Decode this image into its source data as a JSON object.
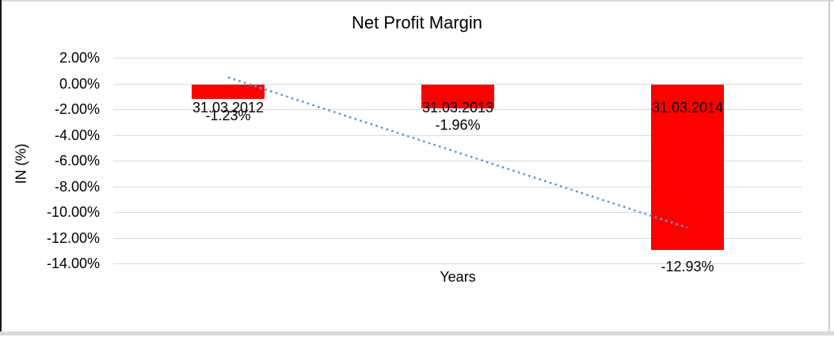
{
  "window": {
    "background": "#ffffff",
    "edge_left_color": "#161616",
    "edge_top_color": "#d8d8d8",
    "edge_right_color": "#cccccc",
    "edge_bottom_color": "#d9d9d9"
  },
  "chart_data": {
    "type": "bar",
    "title": "Net Profit Margin",
    "xlabel": "Years",
    "ylabel": "IN (%)",
    "categories": [
      "31.03.2012",
      "31.03.2013",
      "31.03.2014"
    ],
    "values": [
      -1.23,
      -1.96,
      -12.93
    ],
    "data_labels": [
      "-1.23%",
      "-1.96%",
      "-12.93%"
    ],
    "ylim": [
      -14,
      2
    ],
    "ytick_step": 2,
    "ytick_labels": [
      "2.00%",
      "0.00%",
      "-2.00%",
      "-4.00%",
      "-6.00%",
      "-8.00%",
      "-10.00%",
      "-12.00%",
      "-14.00%"
    ],
    "grid": "horizontal",
    "legend": "none",
    "bar_color": "#ff0000",
    "gridline_color": "#d9d9d9",
    "trendline": {
      "style": "dotted",
      "color": "#5b9bd5",
      "start_value": 0.48,
      "end_value": -11.22
    }
  }
}
